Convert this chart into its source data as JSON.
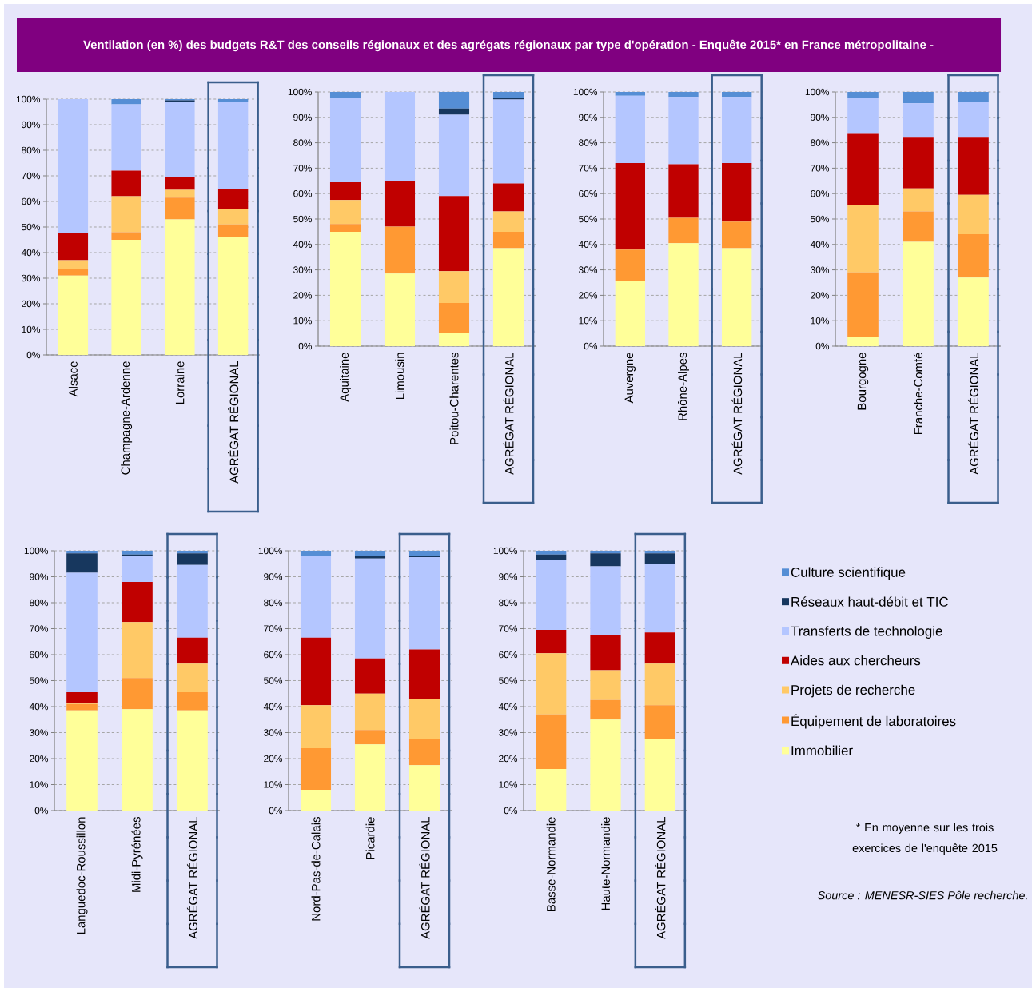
{
  "chart_data": [
    {
      "type": "bar",
      "stacked": true,
      "title": "Ventilation (en %) des budgets R&T des conseils régionaux et des agrégats régionaux par type d'opération -  Enquête 2015* en France métropolitaine -",
      "categories": [
        "Alsace",
        "Champagne-Ardenne",
        "Lorraine",
        "AGRÉGAT RÉGIONAL"
      ],
      "ylim": [
        0,
        100
      ],
      "yticks": [
        {
          "value": 0,
          "label": "0%"
        },
        {
          "value": 10,
          "label": "10%"
        },
        {
          "value": 20,
          "label": "20%"
        },
        {
          "value": 30,
          "label": "30%"
        },
        {
          "value": 40,
          "label": "40%"
        },
        {
          "value": 50,
          "label": "50%"
        },
        {
          "value": 60,
          "label": "60%"
        },
        {
          "value": 70,
          "label": "70%"
        },
        {
          "value": 80,
          "label": "80%"
        },
        {
          "value": 90,
          "label": "90%"
        },
        {
          "value": 100,
          "label": "100%"
        }
      ],
      "grid": "y",
      "series": [
        {
          "color": "#ffff99",
          "values": [
            31,
            45,
            53,
            46
          ]
        },
        {
          "color": "#ff9933",
          "values": [
            2.5,
            3,
            8.5,
            5
          ]
        },
        {
          "color": "#ffc966",
          "values": [
            3.5,
            14,
            3,
            6
          ]
        },
        {
          "color": "#c00000",
          "values": [
            10.5,
            10,
            5,
            8
          ]
        },
        {
          "color": "#b4c6ff",
          "values": [
            52.5,
            26,
            29.5,
            34
          ]
        },
        {
          "color": "#17375e",
          "values": [
            0,
            0,
            0.5,
            0
          ]
        },
        {
          "color": "#558ed5",
          "values": [
            0,
            2,
            0.5,
            1
          ]
        }
      ]
    },
    {
      "type": "bar",
      "stacked": true,
      "categories": [
        "Aquitaine",
        "Limousin",
        "Poitou-Charentes",
        "AGRÉGAT RÉGIONAL"
      ],
      "ylim": [
        0,
        100
      ],
      "yticks": [
        {
          "value": 0,
          "label": "0%"
        },
        {
          "value": 10,
          "label": "10%"
        },
        {
          "value": 20,
          "label": "20%"
        },
        {
          "value": 30,
          "label": "30%"
        },
        {
          "value": 40,
          "label": "40%"
        },
        {
          "value": 50,
          "label": "50%"
        },
        {
          "value": 60,
          "label": "60%"
        },
        {
          "value": 70,
          "label": "70%"
        },
        {
          "value": 80,
          "label": "80%"
        },
        {
          "value": 90,
          "label": "90%"
        },
        {
          "value": 100,
          "label": "100%"
        }
      ],
      "grid": "y",
      "series": [
        {
          "color": "#ffff99",
          "values": [
            45,
            28.5,
            5,
            38.5
          ]
        },
        {
          "color": "#ff9933",
          "values": [
            3,
            18.5,
            12,
            6.5
          ]
        },
        {
          "color": "#ffc966",
          "values": [
            9.5,
            0,
            12.5,
            8
          ]
        },
        {
          "color": "#c00000",
          "values": [
            7,
            18,
            29.5,
            11
          ]
        },
        {
          "color": "#b4c6ff",
          "values": [
            33,
            35,
            32,
            33
          ]
        },
        {
          "color": "#17375e",
          "values": [
            0,
            0,
            2.5,
            0.5
          ]
        },
        {
          "color": "#558ed5",
          "values": [
            2.5,
            0,
            6.5,
            2.5
          ]
        }
      ]
    },
    {
      "type": "bar",
      "stacked": true,
      "categories": [
        "Auvergne",
        "Rhône-Alpes",
        "AGRÉGAT RÉGIONAL"
      ],
      "ylim": [
        0,
        100
      ],
      "yticks": [
        {
          "value": 0,
          "label": "0%"
        },
        {
          "value": 10,
          "label": "10%"
        },
        {
          "value": 20,
          "label": "20%"
        },
        {
          "value": 30,
          "label": "30%"
        },
        {
          "value": 40,
          "label": "40%"
        },
        {
          "value": 50,
          "label": "50%"
        },
        {
          "value": 60,
          "label": "60%"
        },
        {
          "value": 70,
          "label": "70%"
        },
        {
          "value": 80,
          "label": "80%"
        },
        {
          "value": 90,
          "label": "90%"
        },
        {
          "value": 100,
          "label": "100%"
        }
      ],
      "grid": "y",
      "series": [
        {
          "color": "#ffff99",
          "values": [
            25.5,
            40.5,
            38.5
          ]
        },
        {
          "color": "#ff9933",
          "values": [
            12.5,
            10,
            10.5
          ]
        },
        {
          "color": "#ffc966",
          "values": [
            0,
            0,
            0
          ]
        },
        {
          "color": "#c00000",
          "values": [
            34,
            21,
            23
          ]
        },
        {
          "color": "#b4c6ff",
          "values": [
            26.5,
            26.5,
            26
          ]
        },
        {
          "color": "#17375e",
          "values": [
            0,
            0,
            0
          ]
        },
        {
          "color": "#558ed5",
          "values": [
            1.5,
            2,
            2
          ]
        }
      ]
    },
    {
      "type": "bar",
      "stacked": true,
      "categories": [
        "Bourgogne",
        "Franche-Comté",
        "AGRÉGAT RÉGIONAL"
      ],
      "ylim": [
        0,
        100
      ],
      "yticks": [
        {
          "value": 0,
          "label": "0%"
        },
        {
          "value": 10,
          "label": "10%"
        },
        {
          "value": 20,
          "label": "20%"
        },
        {
          "value": 30,
          "label": "30%"
        },
        {
          "value": 40,
          "label": "40%"
        },
        {
          "value": 50,
          "label": "50%"
        },
        {
          "value": 60,
          "label": "60%"
        },
        {
          "value": 70,
          "label": "70%"
        },
        {
          "value": 80,
          "label": "80%"
        },
        {
          "value": 90,
          "label": "90%"
        },
        {
          "value": 100,
          "label": "100%"
        }
      ],
      "grid": "y",
      "series": [
        {
          "color": "#ffff99",
          "values": [
            3.5,
            41,
            27
          ]
        },
        {
          "color": "#ff9933",
          "values": [
            25.5,
            12,
            17
          ]
        },
        {
          "color": "#ffc966",
          "values": [
            26.5,
            9,
            15.5
          ]
        },
        {
          "color": "#c00000",
          "values": [
            28,
            20,
            22.5
          ]
        },
        {
          "color": "#b4c6ff",
          "values": [
            14,
            13.5,
            14
          ]
        },
        {
          "color": "#17375e",
          "values": [
            0,
            0,
            0
          ]
        },
        {
          "color": "#558ed5",
          "values": [
            2.5,
            4.5,
            4
          ]
        }
      ]
    },
    {
      "type": "bar",
      "stacked": true,
      "categories": [
        "Languedoc-Roussillon",
        "Midi-Pyrénées",
        "AGRÉGAT RÉGIONAL"
      ],
      "ylim": [
        0,
        100
      ],
      "yticks": [
        {
          "value": 0,
          "label": "0%"
        },
        {
          "value": 10,
          "label": "10%"
        },
        {
          "value": 20,
          "label": "20%"
        },
        {
          "value": 30,
          "label": "30%"
        },
        {
          "value": 40,
          "label": "40%"
        },
        {
          "value": 50,
          "label": "50%"
        },
        {
          "value": 60,
          "label": "60%"
        },
        {
          "value": 70,
          "label": "70%"
        },
        {
          "value": 80,
          "label": "80%"
        },
        {
          "value": 90,
          "label": "90%"
        },
        {
          "value": 100,
          "label": "100%"
        }
      ],
      "grid": "y",
      "series": [
        {
          "color": "#ffff99",
          "values": [
            38.5,
            39,
            38.5
          ]
        },
        {
          "color": "#ff9933",
          "values": [
            2.5,
            12,
            7
          ]
        },
        {
          "color": "#ffc966",
          "values": [
            0.5,
            21.5,
            11
          ]
        },
        {
          "color": "#c00000",
          "values": [
            4,
            15.5,
            10
          ]
        },
        {
          "color": "#b4c6ff",
          "values": [
            46,
            10,
            28
          ]
        },
        {
          "color": "#17375e",
          "values": [
            7.5,
            0.5,
            4.5
          ]
        },
        {
          "color": "#558ed5",
          "values": [
            1,
            1.5,
            1
          ]
        }
      ]
    },
    {
      "type": "bar",
      "stacked": true,
      "categories": [
        "Nord-Pas-de-Calais",
        "Picardie",
        "AGRÉGAT RÉGIONAL"
      ],
      "ylim": [
        0,
        100
      ],
      "yticks": [
        {
          "value": 0,
          "label": "0%"
        },
        {
          "value": 10,
          "label": "10%"
        },
        {
          "value": 20,
          "label": "20%"
        },
        {
          "value": 30,
          "label": "30%"
        },
        {
          "value": 40,
          "label": "40%"
        },
        {
          "value": 50,
          "label": "50%"
        },
        {
          "value": 60,
          "label": "60%"
        },
        {
          "value": 70,
          "label": "70%"
        },
        {
          "value": 80,
          "label": "80%"
        },
        {
          "value": 90,
          "label": "90%"
        },
        {
          "value": 100,
          "label": "100%"
        }
      ],
      "grid": "y",
      "series": [
        {
          "color": "#ffff99",
          "values": [
            8,
            25.5,
            17.5
          ]
        },
        {
          "color": "#ff9933",
          "values": [
            16,
            5.5,
            10
          ]
        },
        {
          "color": "#ffc966",
          "values": [
            16.5,
            14,
            15.5
          ]
        },
        {
          "color": "#c00000",
          "values": [
            26,
            13.5,
            19
          ]
        },
        {
          "color": "#b4c6ff",
          "values": [
            31.5,
            38.5,
            35.5
          ]
        },
        {
          "color": "#17375e",
          "values": [
            0,
            1,
            0.5
          ]
        },
        {
          "color": "#558ed5",
          "values": [
            2,
            2,
            2
          ]
        }
      ]
    },
    {
      "type": "bar",
      "stacked": true,
      "categories": [
        "Basse-Normandie",
        "Haute-Normandie",
        "AGRÉGAT RÉGIONAL"
      ],
      "ylim": [
        0,
        100
      ],
      "yticks": [
        {
          "value": 0,
          "label": "0%"
        },
        {
          "value": 10,
          "label": "10%"
        },
        {
          "value": 20,
          "label": "20%"
        },
        {
          "value": 30,
          "label": "30%"
        },
        {
          "value": 40,
          "label": "40%"
        },
        {
          "value": 50,
          "label": "50%"
        },
        {
          "value": 60,
          "label": "60%"
        },
        {
          "value": 70,
          "label": "70%"
        },
        {
          "value": 80,
          "label": "80%"
        },
        {
          "value": 90,
          "label": "90%"
        },
        {
          "value": 100,
          "label": "100%"
        }
      ],
      "grid": "y",
      "legend": "right",
      "annotations": [
        "* En moyenne sur les trois exercices de l'enquête 2015",
        "Source : MENESR-SIES Pôle recherche."
      ],
      "series": [
        {
          "name": "Immobilier",
          "color": "#ffff99",
          "values": [
            16,
            35,
            27.5
          ]
        },
        {
          "name": "Équipement de laboratoires",
          "color": "#ff9933",
          "values": [
            21,
            7.5,
            13
          ]
        },
        {
          "name": "Projets de recherche",
          "color": "#ffc966",
          "values": [
            23.5,
            11.5,
            16
          ]
        },
        {
          "name": "Aides aux chercheurs",
          "color": "#c00000",
          "values": [
            9,
            13.5,
            12
          ]
        },
        {
          "name": "Transferts de technologie",
          "color": "#b4c6ff",
          "values": [
            27,
            26.5,
            26.5
          ]
        },
        {
          "name": "Réseaux haut-débit et TIC",
          "color": "#17375e",
          "values": [
            2,
            5,
            4
          ]
        },
        {
          "name": "Culture scientifique",
          "color": "#558ed5",
          "values": [
            1.5,
            1,
            1
          ]
        }
      ]
    }
  ]
}
